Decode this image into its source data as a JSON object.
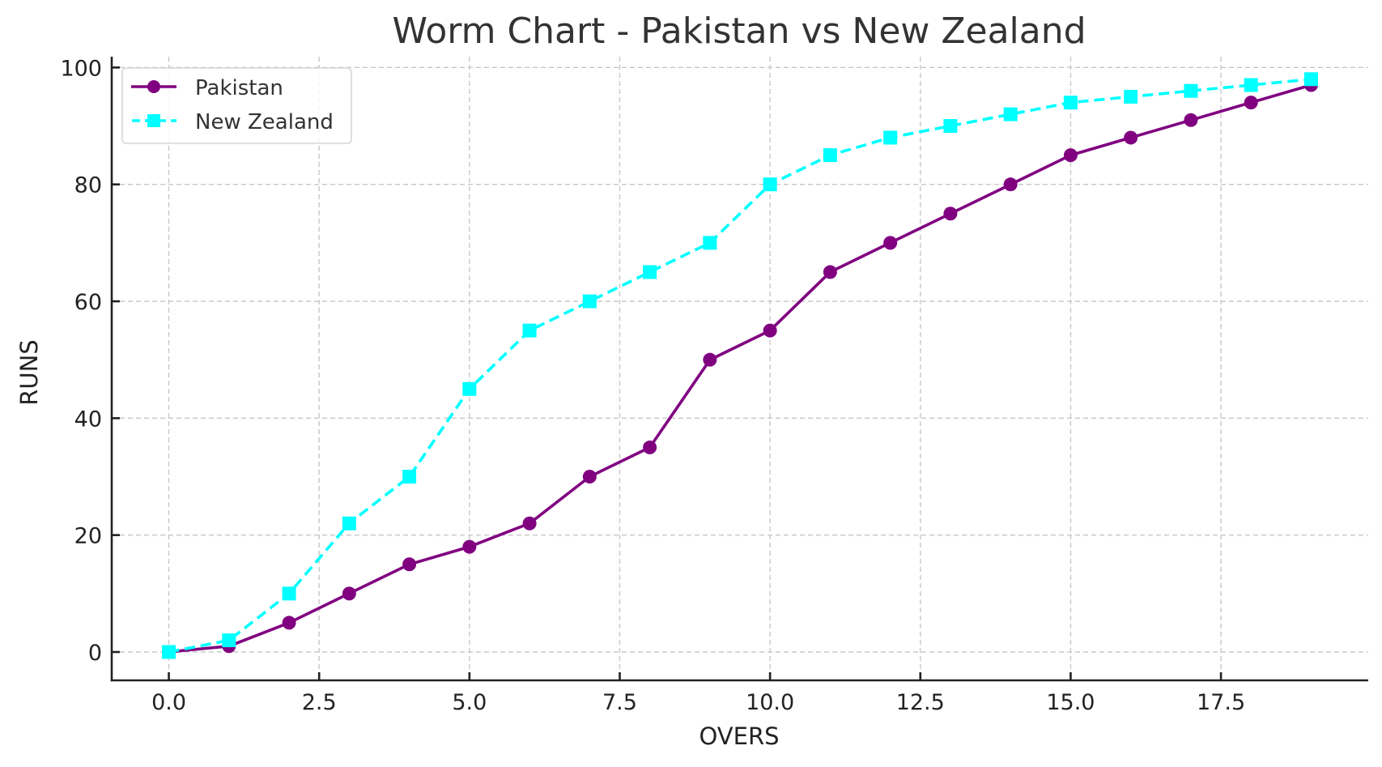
{
  "chart_data": {
    "type": "line",
    "title": "Worm Chart - Pakistan vs New Zealand",
    "xlabel": "OVERS",
    "ylabel": "RUNS",
    "xlim": [
      -0.95,
      19.95
    ],
    "ylim": [
      -4.85,
      101.85
    ],
    "grid": true,
    "legend_position": "top-left",
    "x_ticks": [
      0.0,
      2.5,
      5.0,
      7.5,
      10.0,
      12.5,
      15.0,
      17.5
    ],
    "x_tick_labels": [
      "0.0",
      "2.5",
      "5.0",
      "7.5",
      "10.0",
      "12.5",
      "15.0",
      "17.5"
    ],
    "y_ticks": [
      0,
      20,
      40,
      60,
      80,
      100
    ],
    "y_tick_labels": [
      "0",
      "20",
      "40",
      "60",
      "80",
      "100"
    ],
    "x": [
      0,
      1,
      2,
      3,
      4,
      5,
      6,
      7,
      8,
      9,
      10,
      11,
      12,
      13,
      14,
      15,
      16,
      17,
      18,
      19
    ],
    "series": [
      {
        "name": "Pakistan",
        "color": "#800080",
        "line_style": "solid",
        "marker": "circle",
        "values": [
          0,
          1,
          5,
          10,
          15,
          18,
          22,
          30,
          35,
          50,
          55,
          65,
          70,
          75,
          80,
          85,
          88,
          91,
          94,
          97
        ]
      },
      {
        "name": "New Zealand",
        "color": "#00FFFF",
        "line_style": "dashed",
        "marker": "square",
        "values": [
          0,
          2,
          10,
          22,
          30,
          45,
          55,
          60,
          65,
          70,
          80,
          85,
          88,
          90,
          92,
          94,
          95,
          96,
          97,
          98
        ]
      }
    ]
  }
}
